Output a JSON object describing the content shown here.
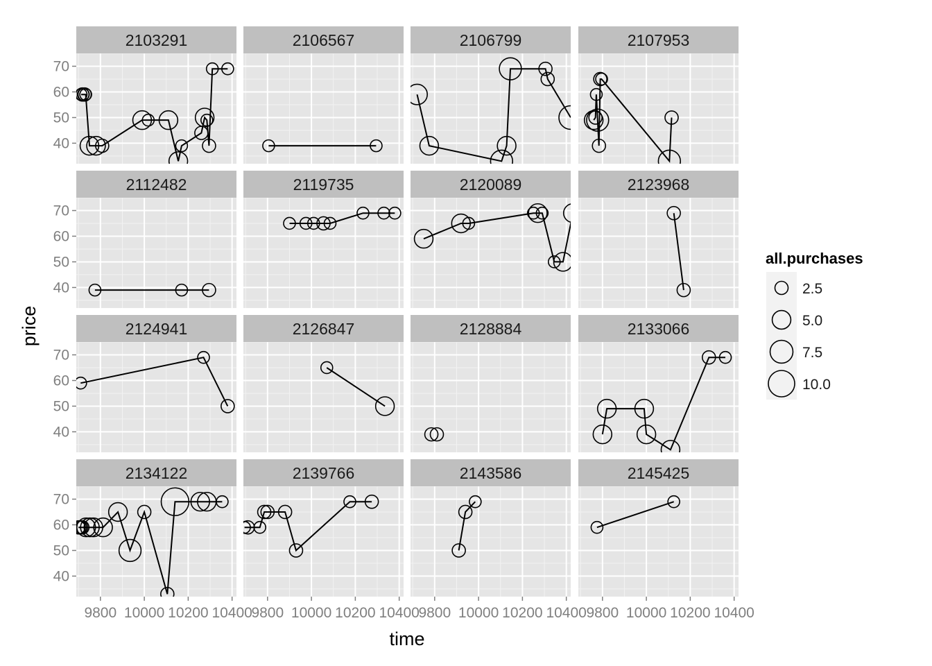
{
  "chart_data": {
    "type": "scatter",
    "subtype": "faceted line + sized points",
    "xlabel": "time",
    "ylabel": "price",
    "xlim": [
      9690,
      10420
    ],
    "ylim": [
      32,
      75
    ],
    "x_ticks": [
      9800,
      10000,
      10200,
      10400
    ],
    "x_tick_labels": [
      "9800",
      "10000",
      "10200",
      "10400"
    ],
    "y_ticks": [
      40,
      50,
      60,
      70
    ],
    "y_tick_labels": [
      "40",
      "50",
      "60",
      "70"
    ],
    "grid": true,
    "size_legend": {
      "title": "all.purchases",
      "placement": "right",
      "entries": [
        {
          "value": 2.5,
          "label": "2.5"
        },
        {
          "value": 5.0,
          "label": "5.0"
        },
        {
          "value": 7.5,
          "label": "7.5"
        },
        {
          "value": 10.0,
          "label": "10.0"
        }
      ]
    },
    "colors": {
      "panel_bg": "#e5e5e5",
      "strip_bg": "#bfbfbf",
      "grid_major": "#ffffff",
      "grid_minor": "#f2f2f2",
      "line": "#000000"
    },
    "facets": [
      {
        "id": "2103291",
        "points": [
          {
            "x": 9712,
            "y": 59,
            "size": 2
          },
          {
            "x": 9718,
            "y": 59,
            "size": 2.5
          },
          {
            "x": 9722,
            "y": 59,
            "size": 2
          },
          {
            "x": 9728,
            "y": 59,
            "size": 2.5
          },
          {
            "x": 9733,
            "y": 59,
            "size": 2
          },
          {
            "x": 9750,
            "y": 39,
            "size": 5
          },
          {
            "x": 9780,
            "y": 39,
            "size": 5
          },
          {
            "x": 9808,
            "y": 39,
            "size": 2.5
          },
          {
            "x": 9990,
            "y": 49,
            "size": 5
          },
          {
            "x": 10018,
            "y": 49,
            "size": 2
          },
          {
            "x": 10110,
            "y": 49,
            "size": 5
          },
          {
            "x": 10155,
            "y": 33,
            "size": 5
          },
          {
            "x": 10170,
            "y": 39,
            "size": 2
          },
          {
            "x": 10260,
            "y": 44,
            "size": 2.5
          },
          {
            "x": 10275,
            "y": 50,
            "size": 5
          },
          {
            "x": 10285,
            "y": 49,
            "size": 2
          },
          {
            "x": 10295,
            "y": 39,
            "size": 2.5
          },
          {
            "x": 10310,
            "y": 69,
            "size": 2
          },
          {
            "x": 10380,
            "y": 69,
            "size": 2
          }
        ]
      },
      {
        "id": "2106567",
        "points": [
          {
            "x": 9805,
            "y": 39,
            "size": 2
          },
          {
            "x": 10295,
            "y": 39,
            "size": 2
          }
        ]
      },
      {
        "id": "2106799",
        "points": [
          {
            "x": 9720,
            "y": 59,
            "size": 6
          },
          {
            "x": 9775,
            "y": 39,
            "size": 5
          },
          {
            "x": 10105,
            "y": 33,
            "size": 7
          },
          {
            "x": 10128,
            "y": 39,
            "size": 5
          },
          {
            "x": 10145,
            "y": 69,
            "size": 7
          },
          {
            "x": 10305,
            "y": 69,
            "size": 2.5
          },
          {
            "x": 10315,
            "y": 65,
            "size": 2.5
          },
          {
            "x": 10420,
            "y": 50,
            "size": 8
          }
        ]
      },
      {
        "id": "2107953",
        "points": [
          {
            "x": 9760,
            "y": 49,
            "size": 5
          },
          {
            "x": 9768,
            "y": 50,
            "size": 2.5
          },
          {
            "x": 9772,
            "y": 59,
            "size": 2
          },
          {
            "x": 9778,
            "y": 49,
            "size": 7
          },
          {
            "x": 9784,
            "y": 39,
            "size": 2.5
          },
          {
            "x": 9790,
            "y": 65,
            "size": 2.5
          },
          {
            "x": 9796,
            "y": 65,
            "size": 2
          },
          {
            "x": 10105,
            "y": 33,
            "size": 7
          },
          {
            "x": 10115,
            "y": 50,
            "size": 2.5
          }
        ]
      },
      {
        "id": "2112482",
        "points": [
          {
            "x": 9775,
            "y": 39,
            "size": 2
          },
          {
            "x": 10170,
            "y": 39,
            "size": 2
          },
          {
            "x": 10295,
            "y": 39,
            "size": 2.5
          }
        ]
      },
      {
        "id": "2119735",
        "points": [
          {
            "x": 9900,
            "y": 65,
            "size": 2
          },
          {
            "x": 9975,
            "y": 65,
            "size": 2
          },
          {
            "x": 10010,
            "y": 65,
            "size": 2
          },
          {
            "x": 10055,
            "y": 65,
            "size": 2.5
          },
          {
            "x": 10085,
            "y": 65,
            "size": 2
          },
          {
            "x": 10235,
            "y": 69,
            "size": 2
          },
          {
            "x": 10330,
            "y": 69,
            "size": 2
          },
          {
            "x": 10380,
            "y": 69,
            "size": 2
          }
        ]
      },
      {
        "id": "2120089",
        "points": [
          {
            "x": 9750,
            "y": 59,
            "size": 5
          },
          {
            "x": 9920,
            "y": 65,
            "size": 5
          },
          {
            "x": 9955,
            "y": 65,
            "size": 2
          },
          {
            "x": 10250,
            "y": 69,
            "size": 2
          },
          {
            "x": 10270,
            "y": 69,
            "size": 5
          },
          {
            "x": 10290,
            "y": 69,
            "size": 2
          },
          {
            "x": 10345,
            "y": 50,
            "size": 2
          },
          {
            "x": 10385,
            "y": 50,
            "size": 5
          },
          {
            "x": 10430,
            "y": 69,
            "size": 5
          }
        ]
      },
      {
        "id": "2123968",
        "points": [
          {
            "x": 10125,
            "y": 69,
            "size": 2.5
          },
          {
            "x": 10170,
            "y": 39,
            "size": 2.5
          }
        ]
      },
      {
        "id": "2124941",
        "points": [
          {
            "x": 9710,
            "y": 59,
            "size": 2
          },
          {
            "x": 10270,
            "y": 69,
            "size": 2
          },
          {
            "x": 10380,
            "y": 50,
            "size": 2.5
          }
        ]
      },
      {
        "id": "2126847",
        "points": [
          {
            "x": 10070,
            "y": 65,
            "size": 2
          },
          {
            "x": 10335,
            "y": 50,
            "size": 5
          }
        ]
      },
      {
        "id": "2128884",
        "lines": false,
        "points": [
          {
            "x": 9785,
            "y": 39,
            "size": 2.5
          },
          {
            "x": 9810,
            "y": 39,
            "size": 2.5
          }
        ]
      },
      {
        "id": "2133066",
        "points": [
          {
            "x": 9800,
            "y": 39,
            "size": 5
          },
          {
            "x": 9820,
            "y": 49,
            "size": 5
          },
          {
            "x": 9990,
            "y": 49,
            "size": 5
          },
          {
            "x": 10000,
            "y": 39,
            "size": 5
          },
          {
            "x": 10110,
            "y": 33,
            "size": 5
          },
          {
            "x": 10285,
            "y": 69,
            "size": 2.5
          },
          {
            "x": 10360,
            "y": 69,
            "size": 2
          }
        ]
      },
      {
        "id": "2134122",
        "points": [
          {
            "x": 9700,
            "y": 59,
            "size": 2.5
          },
          {
            "x": 9706,
            "y": 59,
            "size": 2.5
          },
          {
            "x": 9712,
            "y": 59,
            "size": 2.5
          },
          {
            "x": 9718,
            "y": 59,
            "size": 2.5
          },
          {
            "x": 9735,
            "y": 59,
            "size": 5
          },
          {
            "x": 9752,
            "y": 59,
            "size": 5
          },
          {
            "x": 9768,
            "y": 59,
            "size": 5
          },
          {
            "x": 9812,
            "y": 59,
            "size": 5
          },
          {
            "x": 9880,
            "y": 65,
            "size": 5
          },
          {
            "x": 9935,
            "y": 50,
            "size": 7
          },
          {
            "x": 10000,
            "y": 65,
            "size": 2.5
          },
          {
            "x": 10105,
            "y": 33,
            "size": 2.5
          },
          {
            "x": 10140,
            "y": 69,
            "size": 11
          },
          {
            "x": 10255,
            "y": 69,
            "size": 5
          },
          {
            "x": 10285,
            "y": 69,
            "size": 5
          },
          {
            "x": 10355,
            "y": 69,
            "size": 2
          }
        ]
      },
      {
        "id": "2139766",
        "points": [
          {
            "x": 9695,
            "y": 59,
            "size": 2
          },
          {
            "x": 9710,
            "y": 59,
            "size": 2.5
          },
          {
            "x": 9765,
            "y": 59,
            "size": 2
          },
          {
            "x": 9785,
            "y": 65,
            "size": 2.5
          },
          {
            "x": 9800,
            "y": 65,
            "size": 2.5
          },
          {
            "x": 9880,
            "y": 65,
            "size": 2.5
          },
          {
            "x": 9930,
            "y": 50,
            "size": 2.5
          },
          {
            "x": 10175,
            "y": 69,
            "size": 2
          },
          {
            "x": 10275,
            "y": 69,
            "size": 2.5
          }
        ]
      },
      {
        "id": "2143586",
        "points": [
          {
            "x": 9910,
            "y": 50,
            "size": 2.5
          },
          {
            "x": 9940,
            "y": 65,
            "size": 2.5
          },
          {
            "x": 9985,
            "y": 69,
            "size": 2
          }
        ]
      },
      {
        "id": "2145425",
        "points": [
          {
            "x": 9775,
            "y": 59,
            "size": 2
          },
          {
            "x": 10125,
            "y": 69,
            "size": 2
          }
        ]
      }
    ]
  }
}
